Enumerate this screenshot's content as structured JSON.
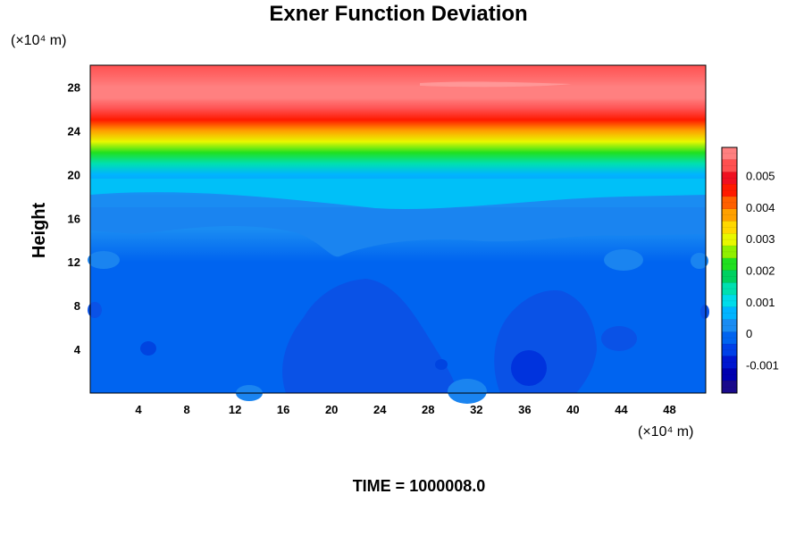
{
  "chart_data": {
    "type": "heatmap",
    "title": "Exner Function Deviation",
    "xlabel": "",
    "ylabel": "Height",
    "x_unit": "(×10⁴ m)",
    "y_unit": "(×10⁴ m)",
    "xlim": [
      0,
      51
    ],
    "ylim": [
      0,
      30
    ],
    "x_ticks": [
      "4",
      "8",
      "12",
      "16",
      "20",
      "24",
      "28",
      "32",
      "36",
      "40",
      "44",
      "48"
    ],
    "y_ticks": [
      "4",
      "8",
      "12",
      "16",
      "20",
      "24",
      "28"
    ],
    "colorbar": {
      "min": -0.0019,
      "max": 0.0059,
      "ticks": [
        "-0.001",
        "0",
        "0.001",
        "0.002",
        "0.003",
        "0.004",
        "0.005"
      ]
    },
    "field_profile": [
      {
        "height": 0,
        "value": -0.0002
      },
      {
        "height": 4,
        "value": -0.0002
      },
      {
        "height": 8,
        "value": -0.0001
      },
      {
        "height": 12,
        "value": 0.0
      },
      {
        "height": 15,
        "value": 0.0001
      },
      {
        "height": 18,
        "value": 0.0003
      },
      {
        "height": 20,
        "value": 0.0008
      },
      {
        "height": 21,
        "value": 0.0015
      },
      {
        "height": 22,
        "value": 0.0022
      },
      {
        "height": 23,
        "value": 0.003
      },
      {
        "height": 24,
        "value": 0.0036
      },
      {
        "height": 25,
        "value": 0.0045
      },
      {
        "height": 26,
        "value": 0.0052
      },
      {
        "height": 27,
        "value": 0.0057
      },
      {
        "height": 28,
        "value": 0.0056
      },
      {
        "height": 30,
        "value": 0.0055
      }
    ],
    "footer": "TIME = 1000008.0"
  },
  "colors": {
    "ramp": [
      "#1a0a8c",
      "#0000b0",
      "#0016d0",
      "#0040e8",
      "#0064f0",
      "#1a8cf2",
      "#00b4ff",
      "#00dcea",
      "#00e0b0",
      "#00d060",
      "#20e020",
      "#90f000",
      "#e8f800",
      "#ffd800",
      "#ffa000",
      "#ff6000",
      "#ff1a00",
      "#f01020",
      "#ff5050",
      "#ff8080"
    ]
  }
}
